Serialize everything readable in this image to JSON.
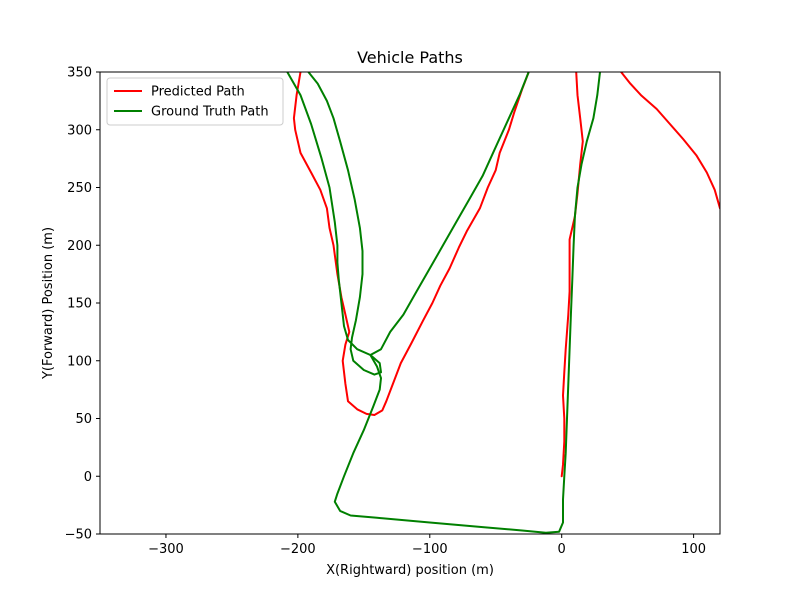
{
  "chart_data": {
    "type": "line",
    "title": "Vehicle Paths",
    "xlabel": "X(Rightward) position (m)",
    "ylabel": "Y(Forward) Position (m)",
    "xlim": [
      -350,
      120
    ],
    "ylim": [
      -50,
      350
    ],
    "xticks": [
      -300,
      -200,
      -100,
      0,
      100
    ],
    "xtick_labels": [
      "−300",
      "−200",
      "−100",
      "0",
      "100"
    ],
    "yticks": [
      -50,
      0,
      50,
      100,
      150,
      200,
      250,
      300,
      350
    ],
    "ytick_labels": [
      "−50",
      "0",
      "50",
      "100",
      "150",
      "200",
      "250",
      "300",
      "350"
    ],
    "grid": false,
    "legend_position": "upper-left",
    "series": [
      {
        "name": "Predicted Path",
        "color": "#ff0000",
        "segments": [
          [
            [
              -198,
              350
            ],
            [
              -201,
              330
            ],
            [
              -203,
              310
            ],
            [
              -202,
              300
            ],
            [
              -198,
              280
            ],
            [
              -190,
              263
            ],
            [
              -183,
              248
            ],
            [
              -178,
              232
            ],
            [
              -176,
              215
            ],
            [
              -173,
              200
            ],
            [
              -170,
              175
            ],
            [
              -167,
              155
            ],
            [
              -164,
              140
            ],
            [
              -161,
              125
            ],
            [
              -164,
              114
            ],
            [
              -166,
              100
            ],
            [
              -164,
              80
            ],
            [
              -162,
              65
            ],
            [
              -155,
              58
            ],
            [
              -148,
              54
            ],
            [
              -142,
              53
            ],
            [
              -136,
              57
            ],
            [
              -133,
              65
            ],
            [
              -128,
              80
            ],
            [
              -122,
              98
            ],
            [
              -114,
              115
            ],
            [
              -105,
              135
            ],
            [
              -98,
              150
            ],
            [
              -92,
              165
            ],
            [
              -85,
              180
            ],
            [
              -78,
              198
            ],
            [
              -72,
              212
            ],
            [
              -62,
              232
            ],
            [
              -56,
              250
            ],
            [
              -50,
              265
            ],
            [
              -47,
              280
            ],
            [
              -40,
              300
            ],
            [
              -36,
              315
            ],
            [
              -30,
              335
            ],
            [
              -25,
              350
            ]
          ],
          [
            [
              11,
              350
            ],
            [
              12,
              330
            ],
            [
              14,
              310
            ],
            [
              16,
              290
            ],
            [
              14,
              270
            ],
            [
              12,
              245
            ],
            [
              10,
              225
            ],
            [
              6,
              205
            ],
            [
              6,
              180
            ],
            [
              6,
              160
            ],
            [
              5,
              140
            ],
            [
              3,
              110
            ],
            [
              2,
              90
            ],
            [
              1,
              70
            ],
            [
              2,
              50
            ],
            [
              2,
              30
            ],
            [
              1,
              10
            ],
            [
              0,
              0
            ]
          ],
          [
            [
              45,
              350
            ],
            [
              52,
              340
            ],
            [
              60,
              330
            ],
            [
              72,
              318
            ],
            [
              82,
              305
            ],
            [
              92,
              292
            ],
            [
              102,
              278
            ],
            [
              110,
              263
            ],
            [
              116,
              248
            ],
            [
              120,
              232
            ]
          ]
        ]
      },
      {
        "name": "Ground Truth Path",
        "color": "#008000",
        "segments": [
          [
            [
              -192,
              350
            ],
            [
              -185,
              340
            ],
            [
              -178,
              325
            ],
            [
              -173,
              310
            ],
            [
              -168,
              290
            ],
            [
              -162,
              265
            ],
            [
              -157,
              240
            ],
            [
              -153,
              215
            ],
            [
              -151,
              195
            ],
            [
              -151,
              175
            ],
            [
              -153,
              155
            ],
            [
              -156,
              135
            ],
            [
              -159,
              120
            ],
            [
              -160,
              110
            ],
            [
              -158,
              100
            ],
            [
              -150,
              92
            ],
            [
              -142,
              88
            ],
            [
              -137,
              90
            ],
            [
              -138,
              98
            ],
            [
              -145,
              105
            ],
            [
              -155,
              110
            ],
            [
              -162,
              118
            ],
            [
              -165,
              130
            ],
            [
              -167,
              150
            ],
            [
              -169,
              170
            ],
            [
              -170,
              185
            ],
            [
              -170,
              200
            ],
            [
              -172,
              220
            ],
            [
              -176,
              250
            ],
            [
              -182,
              275
            ],
            [
              -190,
              305
            ],
            [
              -198,
              330
            ],
            [
              -208,
              350
            ]
          ],
          [
            [
              29,
              350
            ],
            [
              27,
              330
            ],
            [
              24,
              310
            ],
            [
              19,
              290
            ],
            [
              15,
              270
            ],
            [
              12,
              250
            ],
            [
              10,
              225
            ],
            [
              9,
              200
            ],
            [
              8,
              170
            ],
            [
              7,
              140
            ],
            [
              6,
              110
            ],
            [
              5,
              80
            ],
            [
              4,
              50
            ],
            [
              3,
              20
            ],
            [
              2,
              0
            ],
            [
              1,
              -20
            ],
            [
              1,
              -40
            ],
            [
              -2,
              -48
            ],
            [
              -12,
              -49
            ],
            [
              -30,
              -47
            ],
            [
              -60,
              -44
            ],
            [
              -100,
              -40
            ],
            [
              -140,
              -36
            ],
            [
              -160,
              -34
            ],
            [
              -168,
              -30
            ],
            [
              -172,
              -22
            ],
            [
              -170,
              -15
            ],
            [
              -165,
              0
            ],
            [
              -158,
              20
            ],
            [
              -150,
              40
            ],
            [
              -143,
              60
            ],
            [
              -138,
              75
            ],
            [
              -137,
              85
            ],
            [
              -140,
              95
            ],
            [
              -145,
              105
            ],
            [
              -137,
              110
            ],
            [
              -130,
              125
            ],
            [
              -120,
              140
            ],
            [
              -110,
              160
            ],
            [
              -100,
              180
            ],
            [
              -90,
              200
            ],
            [
              -80,
              220
            ],
            [
              -70,
              240
            ],
            [
              -60,
              260
            ],
            [
              -50,
              285
            ],
            [
              -40,
              310
            ],
            [
              -32,
              330
            ],
            [
              -25,
              350
            ]
          ]
        ]
      }
    ]
  }
}
